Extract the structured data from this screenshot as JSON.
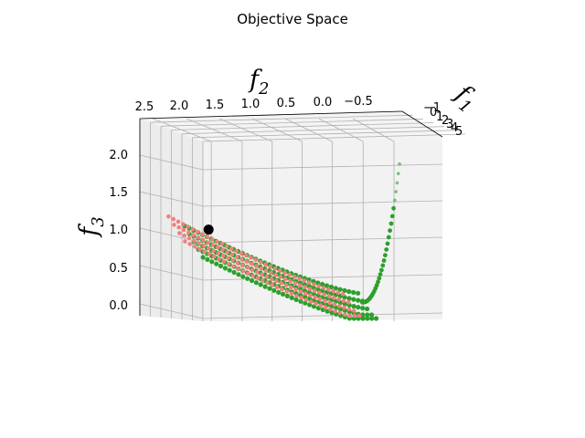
{
  "chart_data": {
    "type": "scatter",
    "title": "Objective Space",
    "axes": {
      "x": {
        "label": "f",
        "sub": "1",
        "ticks": [
          "−1",
          "0",
          "1",
          "2",
          "3",
          "4",
          "5"
        ]
      },
      "y": {
        "label": "f",
        "sub": "2",
        "ticks": [
          "2.5",
          "2.0",
          "1.5",
          "1.0",
          "0.5",
          "0.0",
          "−0.5"
        ]
      },
      "z": {
        "label": "f",
        "sub": "3",
        "ticks": [
          "2.0",
          "1.5",
          "1.0",
          "0.5",
          "0.0"
        ]
      }
    },
    "ylim": [
      -0.5,
      2.5
    ],
    "zlim": [
      0.0,
      2.0
    ],
    "grid": true,
    "series": [
      {
        "role": "population",
        "color": "#2ca02c",
        "marker": "circle",
        "count": 380
      },
      {
        "role": "pareto-front",
        "color": "#f08080",
        "marker": "circle",
        "count": 320
      },
      {
        "role": "highlighted-point",
        "color": "#000000",
        "marker": "circle",
        "point": {
          "f2": 1.92,
          "f3": 0.98
        }
      }
    ]
  }
}
